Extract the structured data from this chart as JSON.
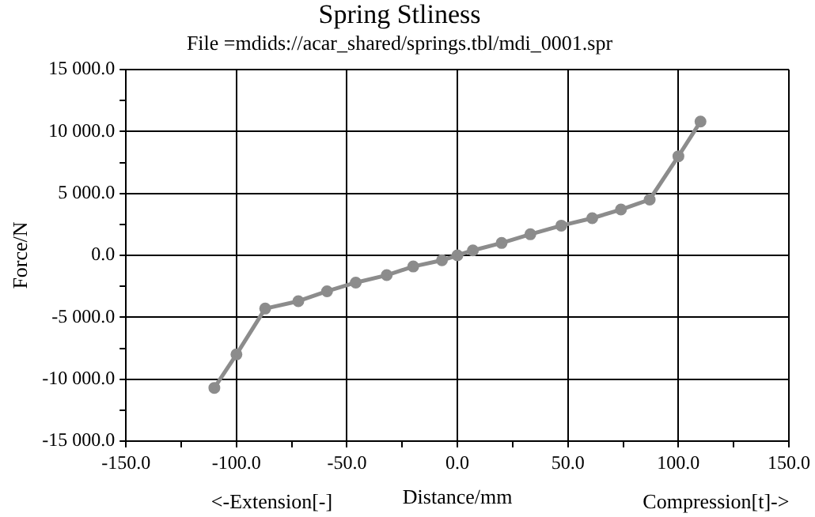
{
  "chart_data": {
    "type": "line",
    "title": "Spring Stliness",
    "subtitle": "File =mdids://acar_shared/springs.tbl/mdi_0001.spr",
    "xlabel": "Distance/mm",
    "ylabel": "Force/N",
    "annotations": [
      "<-Extension[-]",
      "Compression[t]->"
    ],
    "x": [
      -110,
      -100,
      -87,
      -72,
      -59,
      -46,
      -32,
      -20,
      -7,
      0,
      7,
      20,
      33,
      47,
      61,
      74,
      87,
      100,
      110
    ],
    "series": [
      {
        "color": "#8c8c8c",
        "values": [
          -10700,
          -8000,
          -4300,
          -3700,
          -2900,
          -2200,
          -1600,
          -900,
          -400,
          0,
          400,
          1000,
          1700,
          2400,
          3000,
          3700,
          4500,
          8000,
          10800
        ]
      }
    ],
    "xlim": [
      -150,
      150
    ],
    "xticks": [
      {
        "value": -150,
        "label": "-150.0"
      },
      {
        "value": -125,
        "label": null
      },
      {
        "value": -100,
        "label": "-100.0"
      },
      {
        "value": -75,
        "label": null
      },
      {
        "value": -50,
        "label": "-50.0"
      },
      {
        "value": -25,
        "label": null
      },
      {
        "value": 0,
        "label": "0.0"
      },
      {
        "value": 25,
        "label": null
      },
      {
        "value": 50,
        "label": "50.0"
      },
      {
        "value": 75,
        "label": null
      },
      {
        "value": 100,
        "label": "100.0"
      },
      {
        "value": 125,
        "label": null
      },
      {
        "value": 150,
        "label": "150.0"
      }
    ],
    "ylim": [
      -15000,
      15000
    ],
    "yticks": [
      {
        "value": -15000,
        "label": "-15 000.0"
      },
      {
        "value": -12500,
        "label": null
      },
      {
        "value": -10000,
        "label": "-10 000.0"
      },
      {
        "value": -7500,
        "label": null
      },
      {
        "value": -5000,
        "label": "-5 000.0"
      },
      {
        "value": -2500,
        "label": null
      },
      {
        "value": 0,
        "label": "0.0"
      },
      {
        "value": 2500,
        "label": null
      },
      {
        "value": 5000,
        "label": "5 000.0"
      },
      {
        "value": 7500,
        "label": null
      },
      {
        "value": 10000,
        "label": "10 000.0"
      },
      {
        "value": 12500,
        "label": null
      },
      {
        "value": 15000,
        "label": "15 000.0"
      }
    ],
    "grid": true,
    "legend": false,
    "marker": "circle",
    "line_style": "solid"
  }
}
